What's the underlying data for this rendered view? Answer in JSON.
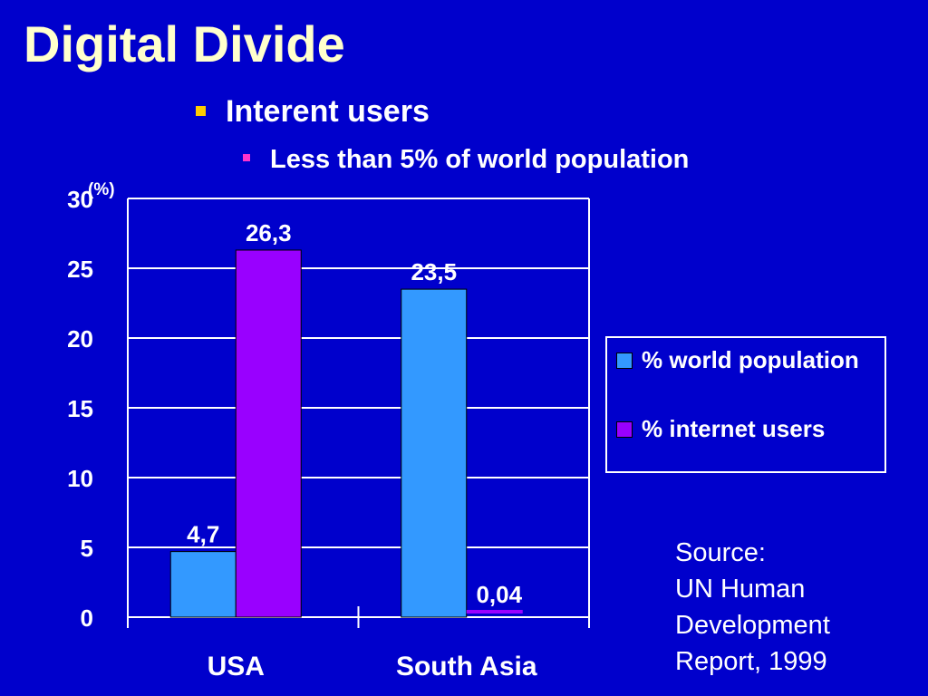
{
  "slide": {
    "title": "Digital Divide",
    "bullet_1": "Interent users",
    "bullet_2": "Less than 5% of world population",
    "source_lines": [
      "Source:",
      "UN Human",
      "Development",
      "Report, 1999"
    ]
  },
  "colors": {
    "background": "#0000CC",
    "title": "#FFFFCC",
    "bullet_1_marker": "#FFCC00",
    "bullet_2_marker": "#FF33CC"
  },
  "chart_data": {
    "type": "bar",
    "categories": [
      "USA",
      "South Asia"
    ],
    "series": [
      {
        "name": "% world population",
        "values": [
          4.7,
          23.5
        ],
        "labels": [
          "4,7",
          "23,5"
        ],
        "color": "#3399FF"
      },
      {
        "name": "% internet users",
        "values": [
          26.3,
          0.04
        ],
        "labels": [
          "26,3",
          "0,04"
        ],
        "color": "#9900FF"
      }
    ],
    "ylabel": "(%)",
    "ylim": [
      0,
      30
    ],
    "yticks": [
      0,
      5,
      10,
      15,
      20,
      25,
      30
    ],
    "grid": true,
    "legend": "right"
  }
}
